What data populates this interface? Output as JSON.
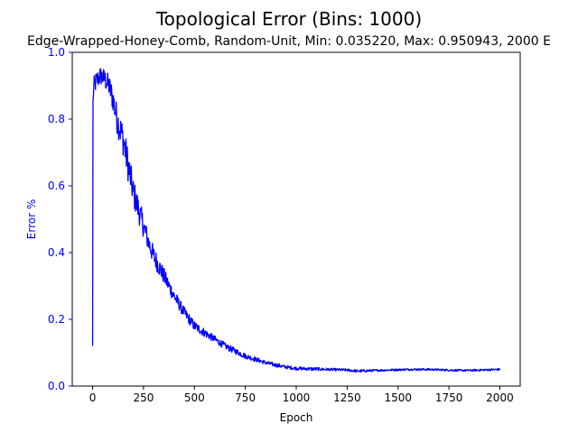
{
  "chart_data": {
    "type": "line",
    "title": "Topological Error (Bins: 1000)",
    "subtitle": "Edge-Wrapped-Honey-Comb, Random-Unit, Min: 0.035220, Max: 0.950943, 2000 E",
    "xlabel": "Epoch",
    "ylabel": "Error %",
    "xlim": [
      -100,
      2100
    ],
    "ylim": [
      0.0,
      1.0
    ],
    "xticks": [
      0,
      250,
      500,
      750,
      1000,
      1250,
      1500,
      1750,
      2000
    ],
    "xtick_labels": [
      "0",
      "250",
      "500",
      "750",
      "1000",
      "1250",
      "1500",
      "1750",
      "2000"
    ],
    "yticks": [
      0.0,
      0.2,
      0.4,
      0.6,
      0.8,
      1.0
    ],
    "ytick_labels": [
      "0.0",
      "0.2",
      "0.4",
      "0.6",
      "0.8",
      "1.0"
    ],
    "grid": false,
    "colors": {
      "line": "#0000ff",
      "y_axis": "#0000ff",
      "x_axis": "#000000"
    },
    "series": [
      {
        "x": [
          0,
          2,
          4,
          8,
          15,
          25,
          40,
          60,
          80,
          100,
          120,
          150,
          175,
          200,
          225,
          250,
          275,
          300,
          325,
          350,
          375,
          400,
          450,
          500,
          550,
          600,
          650,
          700,
          750,
          800,
          850,
          900,
          950,
          1000,
          1050,
          1100,
          1150,
          1200,
          1250,
          1300,
          1350,
          1400,
          1450,
          1500,
          1550,
          1600,
          1650,
          1700,
          1750,
          1800,
          1850,
          1900,
          1950,
          2000
        ],
        "y": [
          0.12,
          0.85,
          0.88,
          0.9,
          0.91,
          0.92,
          0.93,
          0.92,
          0.9,
          0.86,
          0.8,
          0.74,
          0.66,
          0.58,
          0.53,
          0.48,
          0.43,
          0.39,
          0.36,
          0.33,
          0.3,
          0.27,
          0.22,
          0.18,
          0.16,
          0.14,
          0.12,
          0.105,
          0.09,
          0.08,
          0.07,
          0.063,
          0.057,
          0.053,
          0.052,
          0.051,
          0.05,
          0.049,
          0.048,
          0.045,
          0.046,
          0.047,
          0.048,
          0.049,
          0.05,
          0.05,
          0.05,
          0.049,
          0.048,
          0.047,
          0.047,
          0.048,
          0.049,
          0.05
        ],
        "noise": [
          0,
          0.02,
          0.025,
          0.03,
          0.03,
          0.03,
          0.03,
          0.03,
          0.035,
          0.04,
          0.045,
          0.05,
          0.05,
          0.045,
          0.04,
          0.035,
          0.03,
          0.03,
          0.028,
          0.025,
          0.022,
          0.02,
          0.017,
          0.015,
          0.013,
          0.011,
          0.01,
          0.009,
          0.008,
          0.007,
          0.006,
          0.006,
          0.005,
          0.005,
          0.005,
          0.005,
          0.004,
          0.004,
          0.004,
          0.004,
          0.004,
          0.003,
          0.003,
          0.003,
          0.003,
          0.003,
          0.003,
          0.003,
          0.003,
          0.003,
          0.003,
          0.003,
          0.003,
          0.003
        ]
      }
    ]
  }
}
